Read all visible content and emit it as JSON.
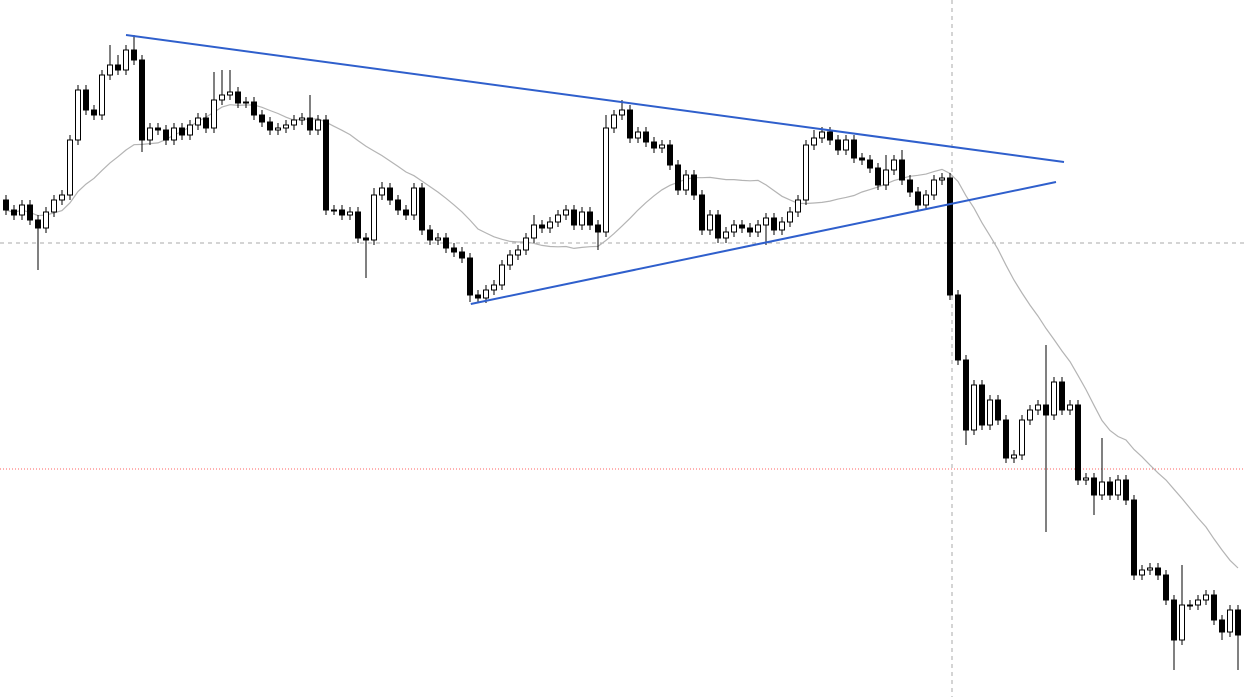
{
  "chart_data": {
    "type": "candlestick",
    "xlim": [
      -0.75,
      154.75
    ],
    "ylim": [
      3,
      700
    ],
    "up_color": "#ffffff",
    "down_color": "#000000",
    "wick_color": "#000000",
    "open": [
      500,
      490,
      485,
      495,
      480,
      472,
      488,
      500,
      505,
      560,
      610,
      590,
      585,
      625,
      635,
      630,
      650,
      640,
      560,
      572,
      570,
      560,
      572,
      565,
      575,
      582,
      572,
      600,
      605,
      608,
      597,
      598,
      585,
      578,
      570,
      572,
      575,
      580,
      582,
      570,
      580,
      490,
      490,
      485,
      488,
      462,
      460,
      505,
      512,
      500,
      490,
      485,
      512,
      470,
      460,
      462,
      452,
      448,
      442,
      405,
      402,
      410,
      415,
      435,
      445,
      450,
      462,
      475,
      472,
      478,
      485,
      490,
      475,
      488,
      475,
      468,
      572,
      585,
      590,
      562,
      568,
      558,
      552,
      555,
      535,
      510,
      525,
      505,
      470,
      485,
      462,
      468,
      475,
      472,
      468,
      475,
      482,
      470,
      478,
      488,
      500,
      555,
      562,
      568,
      560,
      550,
      560,
      542,
      540,
      532,
      515,
      530,
      540,
      520,
      508,
      495,
      505,
      520,
      522,
      405,
      340,
      270,
      315,
      275,
      300,
      280,
      242,
      245,
      280,
      290,
      295,
      285,
      318,
      290,
      295,
      220,
      222,
      205,
      218,
      205,
      220,
      200,
      125,
      130,
      132,
      125,
      100,
      60,
      95,
      95,
      100,
      105,
      80,
      68,
      90
    ],
    "high": [
      505,
      495,
      500,
      500,
      485,
      493,
      505,
      510,
      565,
      615,
      615,
      595,
      630,
      655,
      645,
      655,
      665,
      645,
      577,
      577,
      575,
      577,
      577,
      580,
      587,
      587,
      628,
      630,
      630,
      613,
      603,
      603,
      590,
      583,
      577,
      580,
      585,
      587,
      605,
      585,
      585,
      495,
      495,
      493,
      493,
      467,
      512,
      518,
      517,
      505,
      495,
      517,
      517,
      475,
      467,
      467,
      457,
      453,
      447,
      410,
      415,
      420,
      440,
      450,
      455,
      467,
      485,
      480,
      483,
      490,
      495,
      495,
      493,
      493,
      480,
      585,
      590,
      600,
      595,
      573,
      573,
      563,
      560,
      560,
      540,
      530,
      530,
      510,
      490,
      490,
      473,
      480,
      480,
      477,
      480,
      487,
      487,
      483,
      493,
      505,
      560,
      570,
      573,
      573,
      565,
      565,
      565,
      547,
      545,
      537,
      545,
      545,
      550,
      525,
      513,
      510,
      525,
      527,
      527,
      410,
      345,
      320,
      320,
      305,
      305,
      285,
      250,
      285,
      295,
      300,
      355,
      323,
      323,
      300,
      300,
      227,
      227,
      262,
      223,
      225,
      225,
      205,
      135,
      137,
      137,
      130,
      105,
      135,
      100,
      105,
      110,
      110,
      85,
      95,
      95
    ],
    "low": [
      485,
      480,
      480,
      475,
      430,
      467,
      483,
      495,
      500,
      555,
      585,
      580,
      580,
      620,
      625,
      625,
      635,
      548,
      555,
      565,
      555,
      555,
      560,
      560,
      570,
      567,
      567,
      595,
      600,
      592,
      592,
      580,
      573,
      565,
      565,
      567,
      570,
      575,
      565,
      565,
      485,
      485,
      480,
      480,
      457,
      422,
      455,
      500,
      495,
      485,
      480,
      480,
      465,
      455,
      455,
      447,
      443,
      437,
      398,
      397,
      397,
      405,
      410,
      430,
      440,
      445,
      457,
      467,
      467,
      473,
      480,
      470,
      470,
      470,
      450,
      463,
      567,
      580,
      557,
      557,
      553,
      547,
      547,
      530,
      505,
      505,
      500,
      465,
      465,
      457,
      457,
      463,
      467,
      463,
      463,
      455,
      465,
      465,
      473,
      483,
      495,
      550,
      557,
      555,
      545,
      545,
      537,
      535,
      527,
      510,
      510,
      525,
      515,
      503,
      490,
      490,
      500,
      515,
      400,
      335,
      255,
      265,
      270,
      270,
      275,
      237,
      237,
      240,
      275,
      285,
      168,
      280,
      285,
      285,
      215,
      215,
      185,
      200,
      200,
      200,
      195,
      120,
      120,
      125,
      120,
      95,
      30,
      55,
      90,
      90,
      95,
      75,
      60,
      63,
      30
    ],
    "close": [
      490,
      485,
      495,
      480,
      472,
      488,
      500,
      505,
      560,
      610,
      590,
      585,
      625,
      635,
      630,
      650,
      640,
      560,
      572,
      570,
      560,
      572,
      565,
      575,
      582,
      572,
      600,
      605,
      608,
      597,
      598,
      585,
      578,
      570,
      572,
      575,
      580,
      582,
      570,
      580,
      490,
      490,
      485,
      488,
      462,
      460,
      505,
      512,
      500,
      490,
      485,
      512,
      470,
      460,
      462,
      452,
      448,
      442,
      405,
      402,
      410,
      415,
      435,
      445,
      450,
      462,
      475,
      472,
      478,
      485,
      490,
      475,
      488,
      475,
      468,
      572,
      585,
      590,
      562,
      568,
      558,
      552,
      555,
      535,
      510,
      525,
      505,
      470,
      485,
      462,
      468,
      475,
      472,
      468,
      475,
      482,
      470,
      478,
      488,
      500,
      555,
      562,
      568,
      560,
      550,
      560,
      542,
      540,
      532,
      515,
      530,
      540,
      520,
      508,
      495,
      505,
      520,
      522,
      405,
      340,
      270,
      315,
      275,
      300,
      280,
      242,
      245,
      280,
      290,
      295,
      285,
      318,
      290,
      295,
      220,
      222,
      205,
      218,
      205,
      220,
      200,
      125,
      130,
      132,
      125,
      100,
      60,
      95,
      95,
      100,
      105,
      80,
      68,
      90,
      65
    ],
    "moving_average": {
      "period": 20,
      "color": "#b4b4b4"
    },
    "trendlines": [
      {
        "x": [
          15,
          132.25
        ],
        "y": [
          665,
          538
        ],
        "color": "#2f5fcc"
      },
      {
        "x": [
          58.1,
          131.25
        ],
        "y": [
          396,
          518
        ],
        "color": "#2f5fcc"
      }
    ],
    "crosshair": {
      "x": 118.25,
      "y": 457,
      "color": "#aaaaaa"
    },
    "price_line": {
      "y": 231,
      "color": "#ff6060"
    }
  }
}
